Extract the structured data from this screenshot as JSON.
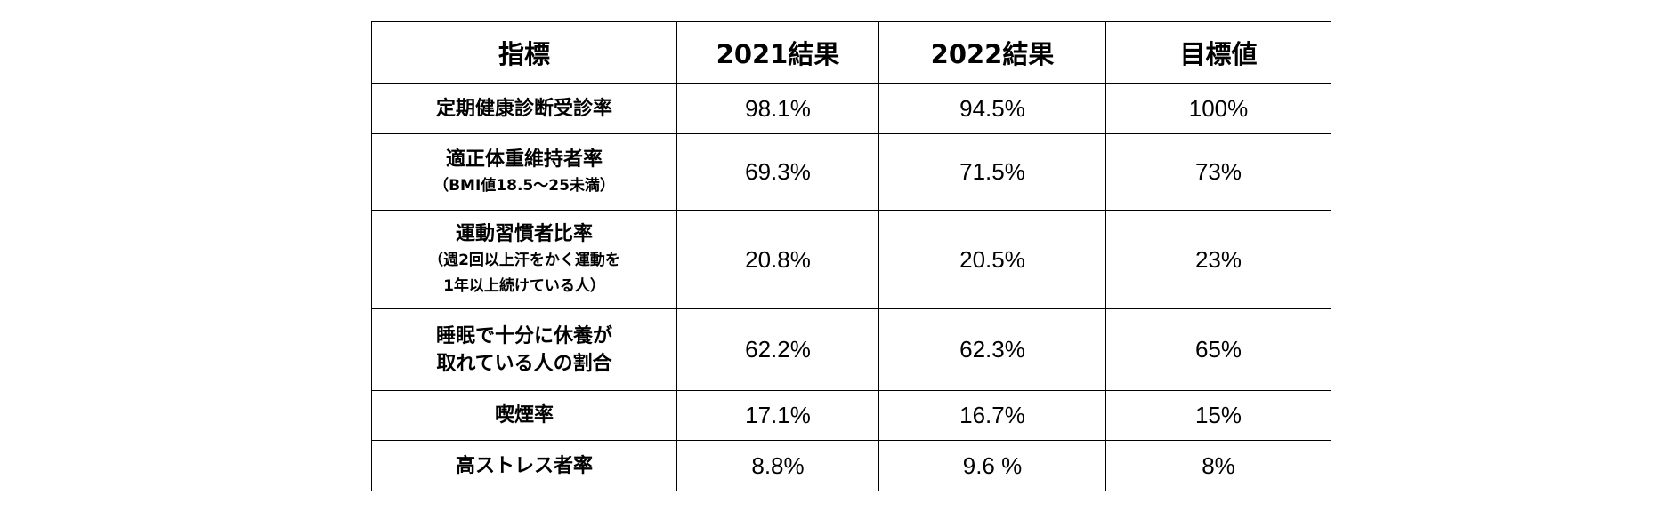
{
  "table": {
    "headers": [
      "指標",
      "2021結果",
      "2022結果",
      "目標値"
    ],
    "rows": [
      {
        "label_lines": [
          "定期健康診断受診率"
        ],
        "note_lines": [],
        "v2021": "98.1%",
        "v2022": "94.5%",
        "target": "100%"
      },
      {
        "label_lines": [
          "適正体重維持者率"
        ],
        "note_lines": [
          "（BMI値18.5～25未満）"
        ],
        "v2021": "69.3%",
        "v2022": "71.5%",
        "target": "73%"
      },
      {
        "label_lines": [
          "運動習慣者比率"
        ],
        "note_lines": [
          "（週2回以上汗をかく運動を",
          "1年以上続けている人）"
        ],
        "v2021": "20.8%",
        "v2022": "20.5%",
        "target": "23%"
      },
      {
        "label_lines": [
          "睡眠で十分に休養が",
          "取れている人の割合"
        ],
        "note_lines": [],
        "v2021": "62.2%",
        "v2022": "62.3%",
        "target": "65%"
      },
      {
        "label_lines": [
          "喫煙率"
        ],
        "note_lines": [],
        "v2021": "17.1%",
        "v2022": "16.7%",
        "target": "15%"
      },
      {
        "label_lines": [
          "高ストレス者率"
        ],
        "note_lines": [],
        "v2021": "8.8%",
        "v2022": "9.6 %",
        "target": "8%"
      }
    ]
  }
}
